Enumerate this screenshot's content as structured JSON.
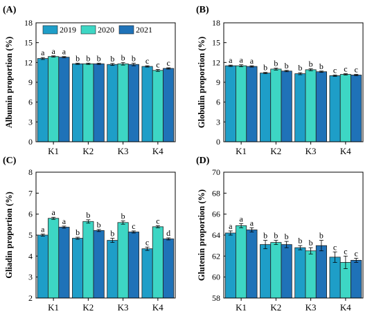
{
  "colors": {
    "2019": "#1e9ec8",
    "2020": "#3dd6c4",
    "2021": "#1f72b8"
  },
  "legend": [
    "2019",
    "2020",
    "2021"
  ],
  "chart_data": [
    {
      "panel": "(A)",
      "type": "bar",
      "ylabel": "Albumin proportion (%)",
      "categories": [
        "K1",
        "K2",
        "K3",
        "K4"
      ],
      "ylim": [
        0,
        18
      ],
      "yticks": [
        0,
        3,
        6,
        9,
        12,
        15,
        18
      ],
      "series": [
        {
          "name": "2019",
          "values": [
            12.6,
            11.8,
            11.7,
            11.4
          ],
          "err": [
            0.15,
            0.1,
            0.15,
            0.1
          ],
          "letters": [
            "a",
            "b",
            "b",
            "c"
          ]
        },
        {
          "name": "2020",
          "values": [
            12.9,
            11.8,
            11.8,
            10.8
          ],
          "err": [
            0.1,
            0.1,
            0.2,
            0.15
          ],
          "letters": [
            "a",
            "b",
            "b",
            "c"
          ]
        },
        {
          "name": "2021",
          "values": [
            12.8,
            11.8,
            11.7,
            11.1
          ],
          "err": [
            0.1,
            0.1,
            0.2,
            0.1
          ],
          "letters": [
            "a",
            "b",
            "b",
            "c"
          ]
        }
      ]
    },
    {
      "panel": "(B)",
      "type": "bar",
      "ylabel": "Globulin proportion (%)",
      "categories": [
        "K1",
        "K2",
        "K3",
        "K4"
      ],
      "ylim": [
        0,
        18
      ],
      "yticks": [
        0,
        3,
        6,
        9,
        12,
        15,
        18
      ],
      "series": [
        {
          "name": "2019",
          "values": [
            11.5,
            10.4,
            10.3,
            10.0
          ],
          "err": [
            0.1,
            0.1,
            0.15,
            0.1
          ],
          "letters": [
            "a",
            "b",
            "b",
            "c"
          ]
        },
        {
          "name": "2020",
          "values": [
            11.5,
            11.0,
            10.9,
            10.2
          ],
          "err": [
            0.15,
            0.15,
            0.15,
            0.1
          ],
          "letters": [
            "a",
            "b",
            "b",
            "c"
          ]
        },
        {
          "name": "2021",
          "values": [
            11.4,
            10.7,
            10.6,
            10.1
          ],
          "err": [
            0.1,
            0.1,
            0.1,
            0.1
          ],
          "letters": [
            "a",
            "b",
            "b",
            "c"
          ]
        }
      ]
    },
    {
      "panel": "(C)",
      "type": "bar",
      "ylabel": "Gliadin proportion (%)",
      "categories": [
        "K1",
        "K2",
        "K3",
        "K4"
      ],
      "ylim": [
        2,
        8
      ],
      "yticks": [
        2,
        3,
        4,
        5,
        6,
        7,
        8
      ],
      "series": [
        {
          "name": "2019",
          "values": [
            5.0,
            4.85,
            4.75,
            4.35
          ],
          "err": [
            0.05,
            0.05,
            0.1,
            0.08
          ],
          "letters": [
            "a",
            "b",
            "b",
            "c"
          ]
        },
        {
          "name": "2020",
          "values": [
            5.8,
            5.65,
            5.6,
            5.4
          ],
          "err": [
            0.05,
            0.08,
            0.08,
            0.05
          ],
          "letters": [
            "a",
            "b",
            "b",
            "c"
          ]
        },
        {
          "name": "2021",
          "values": [
            5.38,
            5.22,
            5.15,
            4.82
          ],
          "err": [
            0.05,
            0.05,
            0.05,
            0.05
          ],
          "letters": [
            "a",
            "b",
            "c",
            "d"
          ]
        }
      ]
    },
    {
      "panel": "(D)",
      "type": "bar",
      "ylabel": "Glutenin  proportion (%)",
      "categories": [
        "K1",
        "K2",
        "K3",
        "K4"
      ],
      "ylim": [
        58,
        70
      ],
      "yticks": [
        58,
        60,
        62,
        64,
        66,
        68,
        70
      ],
      "series": [
        {
          "name": "2019",
          "values": [
            64.2,
            63.1,
            62.8,
            61.9
          ],
          "err": [
            0.2,
            0.4,
            0.2,
            0.5
          ],
          "letters": [
            "a",
            "b",
            "b",
            "c"
          ]
        },
        {
          "name": "2020",
          "values": [
            64.9,
            63.3,
            62.5,
            61.4
          ],
          "err": [
            0.2,
            0.2,
            0.3,
            0.6
          ],
          "letters": [
            "a",
            "b",
            "b",
            "c"
          ]
        },
        {
          "name": "2021",
          "values": [
            64.5,
            63.1,
            63.0,
            61.6
          ],
          "err": [
            0.2,
            0.3,
            0.5,
            0.2
          ],
          "letters": [
            "a",
            "b",
            "b",
            "c"
          ]
        }
      ]
    }
  ]
}
